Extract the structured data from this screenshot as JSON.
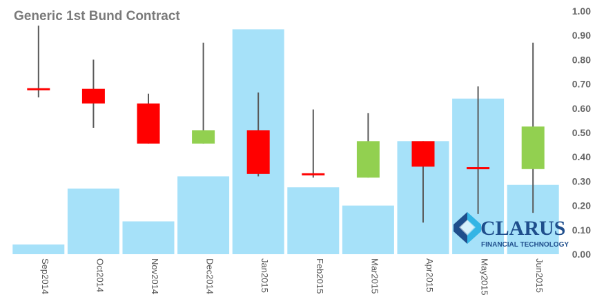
{
  "chart_data": {
    "type": "bar",
    "title": "Generic 1st Bund Contract",
    "categories": [
      "Sep2014",
      "Oct2014",
      "Nov2014",
      "Dec2014",
      "Jan2015",
      "Feb2015",
      "Mar2015",
      "Apr2015",
      "May2015",
      "Jun2015"
    ],
    "bar_values": [
      0.04,
      0.27,
      0.135,
      0.32,
      0.925,
      0.275,
      0.2,
      0.465,
      0.64,
      0.285
    ],
    "candles": [
      {
        "open": 0.68,
        "high": 0.94,
        "low": 0.645,
        "close": 0.68
      },
      {
        "open": 0.68,
        "high": 0.8,
        "low": 0.52,
        "close": 0.62
      },
      {
        "open": 0.62,
        "high": 0.66,
        "low": 0.455,
        "close": 0.455
      },
      {
        "open": 0.455,
        "high": 0.87,
        "low": 0.455,
        "close": 0.51
      },
      {
        "open": 0.51,
        "high": 0.665,
        "low": 0.32,
        "close": 0.33
      },
      {
        "open": 0.33,
        "high": 0.595,
        "low": 0.315,
        "close": 0.325
      },
      {
        "open": 0.315,
        "high": 0.58,
        "low": 0.315,
        "close": 0.465
      },
      {
        "open": 0.465,
        "high": 0.465,
        "low": 0.13,
        "close": 0.36
      },
      {
        "open": 0.355,
        "high": 0.69,
        "low": 0.165,
        "close": 0.355
      },
      {
        "open": 0.35,
        "high": 0.87,
        "low": 0.17,
        "close": 0.525
      }
    ],
    "ylim": [
      0,
      1
    ],
    "yticks": [
      "0.00",
      "0.10",
      "0.20",
      "0.30",
      "0.40",
      "0.50",
      "0.60",
      "0.70",
      "0.80",
      "0.90",
      "1.00"
    ],
    "grid": false,
    "colors": {
      "bar": "#a6e1f9",
      "up": "#92d050",
      "down": "#ff0000",
      "wick": "#595959"
    }
  },
  "logo": {
    "name": "CLARUS",
    "tagline": "FINANCIAL TECHNOLOGY",
    "colors": {
      "primary": "#1f4e8c",
      "accent": "#33b5e5"
    }
  }
}
